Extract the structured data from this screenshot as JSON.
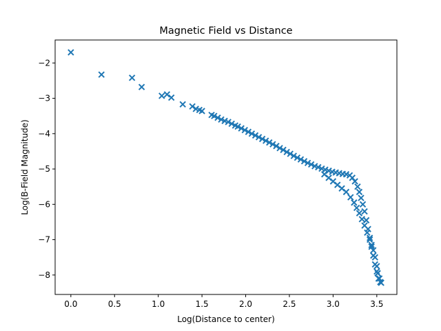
{
  "chart_data": {
    "type": "scatter",
    "title": "Magnetic Field vs Distance",
    "xlabel": "Log(Distance to center)",
    "ylabel": "Log(B-Field Magnitude)",
    "xlim": [
      -0.18,
      3.73
    ],
    "ylim": [
      -8.55,
      -1.35
    ],
    "x_ticks": [
      0.0,
      0.5,
      1.0,
      1.5,
      2.0,
      2.5,
      3.0,
      3.5
    ],
    "x_tick_labels": [
      "0.0",
      "0.5",
      "1.0",
      "1.5",
      "2.0",
      "2.5",
      "3.0",
      "3.5"
    ],
    "y_ticks": [
      -2,
      -3,
      -4,
      -5,
      -6,
      -7,
      -8
    ],
    "y_tick_labels": [
      "−2",
      "−3",
      "−4",
      "−5",
      "−6",
      "−7",
      "−8"
    ],
    "marker": "x",
    "grid": false,
    "colors": {
      "series": "#1f77b4",
      "axes": "#000000"
    },
    "series": [
      {
        "x": [
          0.0,
          0.35,
          0.7,
          0.81,
          1.04,
          1.1,
          1.15,
          1.28,
          1.39,
          1.43,
          1.47,
          1.5,
          1.61,
          1.64,
          1.68,
          1.72,
          1.76,
          1.8,
          1.84,
          1.88,
          1.91,
          1.95,
          1.99,
          2.03,
          2.07,
          2.11,
          2.15,
          2.19,
          2.23,
          2.27,
          2.31,
          2.35,
          2.39,
          2.43,
          2.47,
          2.51,
          2.55,
          2.59,
          2.63,
          2.67,
          2.71,
          2.75,
          2.79,
          2.83,
          2.87,
          2.91,
          2.95,
          2.99,
          3.03,
          3.07,
          3.11,
          3.15,
          3.19,
          3.22,
          3.25,
          3.28,
          3.3,
          3.32,
          3.34,
          3.36,
          3.38,
          3.4,
          3.42,
          3.44,
          3.46,
          3.48,
          3.5,
          3.52,
          3.54,
          2.9,
          2.95,
          3.0,
          3.05,
          3.1,
          3.15,
          3.2,
          3.24,
          3.27,
          3.3,
          3.33,
          3.36,
          3.39,
          3.42,
          3.44,
          3.46,
          3.48,
          3.5,
          3.51,
          3.53,
          3.55
        ],
        "y": [
          -1.7,
          -2.33,
          -2.42,
          -2.68,
          -2.93,
          -2.89,
          -2.98,
          -3.17,
          -3.23,
          -3.3,
          -3.33,
          -3.36,
          -3.47,
          -3.5,
          -3.55,
          -3.6,
          -3.64,
          -3.67,
          -3.72,
          -3.77,
          -3.8,
          -3.85,
          -3.9,
          -3.95,
          -4.0,
          -4.05,
          -4.1,
          -4.15,
          -4.2,
          -4.25,
          -4.3,
          -4.35,
          -4.41,
          -4.46,
          -4.52,
          -4.57,
          -4.63,
          -4.68,
          -4.73,
          -4.78,
          -4.83,
          -4.87,
          -4.92,
          -4.95,
          -4.99,
          -5.02,
          -5.05,
          -5.08,
          -5.1,
          -5.12,
          -5.14,
          -5.15,
          -5.18,
          -5.25,
          -5.35,
          -5.5,
          -5.65,
          -5.82,
          -6.0,
          -6.2,
          -6.45,
          -6.7,
          -6.95,
          -7.2,
          -7.45,
          -7.7,
          -7.9,
          -8.1,
          -8.2,
          -5.15,
          -5.25,
          -5.35,
          -5.45,
          -5.55,
          -5.65,
          -5.8,
          -5.95,
          -6.1,
          -6.25,
          -6.42,
          -6.6,
          -6.8,
          -7.0,
          -7.15,
          -7.3,
          -7.5,
          -7.75,
          -7.95,
          -8.1,
          -8.22
        ]
      }
    ]
  }
}
